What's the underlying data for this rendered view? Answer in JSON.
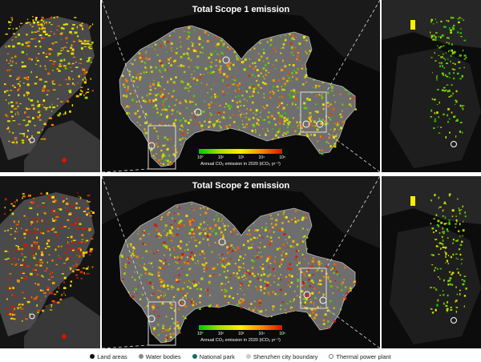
{
  "top_panel": {
    "title": "Total Scope 1 emission",
    "colorbar_label": "Annual CO₂ emission in 2020 (tCO₂ yr⁻¹)",
    "colorbar_ticks": [
      "10⁰",
      "10²",
      "10³",
      "10⁴",
      "10⁵"
    ]
  },
  "bottom_panel": {
    "title": "Total Scope 2 emission",
    "colorbar_label": "Annual CO₂ emission in 2020 (tCO₂ yr⁻¹)",
    "colorbar_ticks": [
      "10⁰",
      "10²",
      "10³",
      "10⁴",
      "10⁵"
    ]
  },
  "legend": [
    {
      "label": "Land areas",
      "color": "#111111"
    },
    {
      "label": "Water bodies",
      "color": "#888888"
    },
    {
      "label": "National park",
      "color": "#1a6b6b"
    },
    {
      "label": "Shenzhen city boundary",
      "color": "#cccccc"
    },
    {
      "label": "Thermal power plant",
      "color": "#ffffff"
    }
  ],
  "colors": {
    "background": "#0a0a0a",
    "city_fill": "#6e6e6e",
    "low": "#00c800",
    "mid": "#ffee00",
    "high": "#dd1100"
  }
}
